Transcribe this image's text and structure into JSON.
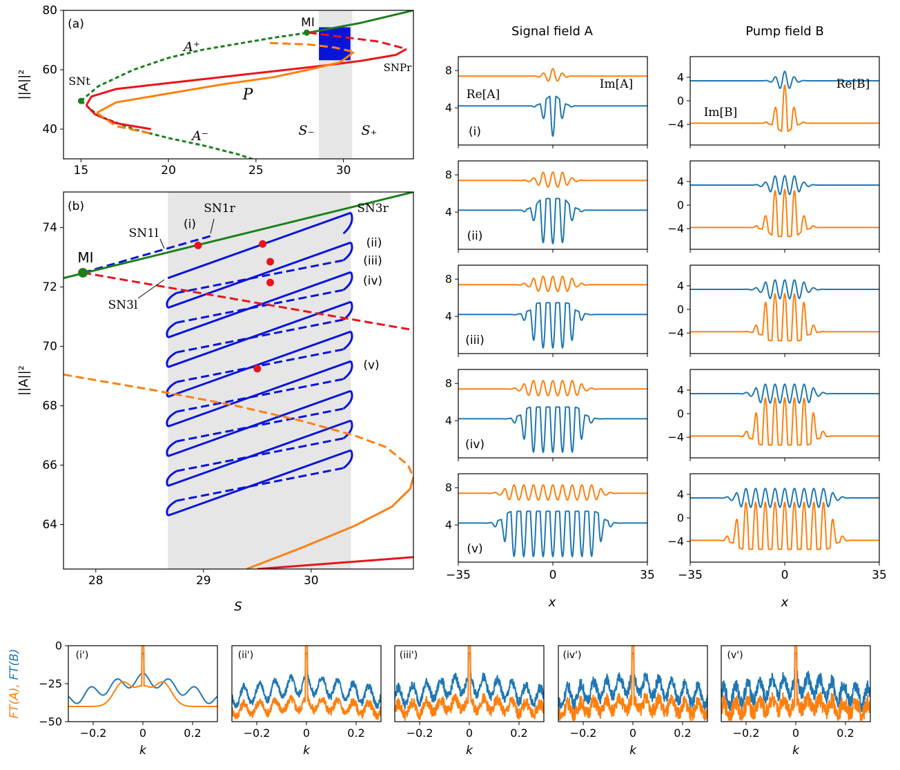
{
  "colors": {
    "blue": "#1f77b4",
    "orange": "#ff7f0e",
    "green": "#1a7f1a",
    "red": "#e8141c",
    "darkblue": "#0a14d8",
    "gray": "#e6e6e6",
    "dot": "#e8141c"
  },
  "chart_data": [
    {
      "id": "a",
      "type": "line",
      "panel_label": "(a)",
      "xlim": [
        14,
        34
      ],
      "ylim": [
        30,
        80
      ],
      "xticks": [
        15,
        20,
        25,
        30
      ],
      "yticks": [
        40,
        60,
        80
      ],
      "ylabel": "||A||²",
      "shaded_x": [
        28.6,
        30.5
      ],
      "annotations": {
        "mi": "MI",
        "a_plus": "A⁺",
        "a_minus": "A⁻",
        "p": "P",
        "snt": "SNt",
        "snp": "SNPr",
        "s_minus": "S₋",
        "s_plus": "S₊"
      },
      "curves": [
        {
          "id": "green-upper",
          "style": "solid",
          "color": "green",
          "x": [
            28,
            31,
            34
          ],
          "y": [
            72.5,
            75.8,
            80
          ]
        },
        {
          "id": "green-dashed",
          "style": "dashed",
          "color": "green",
          "x": [
            15,
            16,
            18,
            20,
            22,
            24,
            26,
            28
          ],
          "y": [
            49.5,
            54.5,
            60,
            64,
            66.8,
            68.8,
            70.8,
            72.5
          ]
        },
        {
          "id": "green-lower",
          "style": "dashed",
          "color": "green",
          "x": [
            15,
            16,
            18,
            20,
            22,
            24,
            25
          ],
          "y": [
            49.5,
            44.5,
            40,
            37,
            34.5,
            31.5,
            29.5
          ]
        },
        {
          "id": "red-p",
          "style": "solid",
          "color": "red",
          "x": [
            15.3,
            15.6,
            17,
            20,
            23,
            26,
            29,
            31,
            33,
            33.6
          ],
          "y": [
            48,
            51,
            53.5,
            55.5,
            57.5,
            59.5,
            61.5,
            63,
            65,
            67
          ]
        },
        {
          "id": "red-lower",
          "style": "solid",
          "color": "red",
          "x": [
            15.3,
            15.8,
            17,
            19
          ],
          "y": [
            48,
            45,
            42,
            40
          ]
        },
        {
          "id": "red-upper-dashed",
          "style": "dashed",
          "color": "red",
          "x": [
            28,
            30,
            32,
            33.6
          ],
          "y": [
            72.5,
            71,
            69.5,
            67
          ]
        },
        {
          "id": "orange-p",
          "style": "solid",
          "color": "orange",
          "x": [
            15.9,
            17,
            20,
            23,
            26,
            28,
            29.8,
            30.6
          ],
          "y": [
            45.5,
            49,
            52,
            55,
            57.5,
            60,
            62.5,
            66
          ]
        },
        {
          "id": "orange-upper-dashed",
          "style": "dashed",
          "color": "orange",
          "x": [
            25.8,
            28,
            29.5,
            30.6
          ],
          "y": [
            69,
            68.5,
            67.5,
            66
          ]
        },
        {
          "id": "orange-lower",
          "style": "dashed",
          "color": "orange",
          "x": [
            15.9,
            17,
            19
          ],
          "y": [
            45.5,
            41,
            38.5
          ]
        }
      ],
      "points": [
        {
          "x": 15,
          "y": 49.5,
          "color": "green"
        },
        {
          "x": 27.9,
          "y": 72.5,
          "color": "green"
        }
      ],
      "blue_block": {
        "x": [
          28.6,
          30.4
        ],
        "y": [
          63,
          74.5
        ]
      }
    },
    {
      "id": "b",
      "type": "line",
      "panel_label": "(b)",
      "xlim": [
        27.7,
        30.95
      ],
      "ylim": [
        62.5,
        75.2
      ],
      "xticks": [
        28,
        29,
        30
      ],
      "yticks": [
        64,
        66,
        68,
        70,
        72,
        74
      ],
      "xlabel": "S",
      "ylabel": "||A||²",
      "shaded_x": [
        28.67,
        30.37
      ],
      "labels": {
        "mi": "MI",
        "sn1l": "SN1l",
        "sn1r": "SN1r",
        "sn3r": "SN3r",
        "sn3l": "SN3l",
        "i": "(i)",
        "ii": "(ii)",
        "iii": "(iii)",
        "iv": "(iv)",
        "v": "(v)"
      },
      "green_line": {
        "x": [
          27.7,
          30.95
        ],
        "y": [
          72.3,
          75.2
        ]
      },
      "red_dashed": {
        "x": [
          27.88,
          30.95
        ],
        "y": [
          72.48,
          70.55
        ]
      },
      "orange_dashed": {
        "x": [
          27.7,
          28.5,
          29.3,
          29.9,
          30.4,
          30.7,
          30.9,
          30.95
        ],
        "y": [
          69.05,
          68.55,
          68.0,
          67.5,
          67.0,
          66.6,
          66.0,
          65.6
        ]
      },
      "orange_solid": {
        "x": [
          29.4,
          29.9,
          30.4,
          30.75,
          30.92,
          30.95
        ],
        "y": [
          62.5,
          63.2,
          63.95,
          64.6,
          65.2,
          65.6
        ]
      },
      "red_bottom": {
        "x": [
          29.5,
          30.95
        ],
        "y": [
          62.5,
          62.9
        ]
      },
      "snake_solid_left_y": [
        72.3,
        71.3,
        70.3,
        69.3,
        68.3,
        67.3,
        66.3,
        65.3,
        64.3
      ],
      "snake_solid_right_y": [
        74.5,
        73.5,
        72.5,
        71.5,
        70.5,
        69.5,
        68.5,
        67.5,
        66.5
      ],
      "snake_dashed_left_y": [
        73.3,
        71.8,
        70.8,
        69.8,
        68.8,
        67.8,
        66.8,
        65.8,
        64.8
      ],
      "snake_dashed_right_y": [
        73.8,
        72.9,
        71.9,
        70.9,
        69.9,
        68.9,
        67.9,
        66.9,
        65.9
      ],
      "red_points": [
        {
          "x": 28.95,
          "y": 73.4
        },
        {
          "x": 29.55,
          "y": 73.45
        },
        {
          "x": 29.62,
          "y": 72.85
        },
        {
          "x": 29.62,
          "y": 72.15
        },
        {
          "x": 29.5,
          "y": 69.25
        }
      ],
      "mi_point": {
        "x": 27.88,
        "y": 72.48
      }
    }
  ],
  "grid_headers": {
    "signal": "Signal field A",
    "pump": "Pump field B"
  },
  "profiles": {
    "xlim": [
      -35,
      35
    ],
    "xticks": [
      -35,
      0,
      35
    ],
    "xlabel": "x",
    "signal_yticks": [
      4,
      8
    ],
    "pump_yticks": [
      -4,
      0,
      4
    ],
    "signal_ylim": [
      0,
      9.5
    ],
    "pump_ylim": [
      -7.5,
      7.5
    ],
    "row_labels": [
      "(i)",
      "(ii)",
      "(iii)",
      "(iv)",
      "(v)"
    ],
    "widths": [
      4,
      6,
      8,
      11,
      18
    ],
    "signal_legend": {
      "re": "Re[A]",
      "im": "Im[A]"
    },
    "pump_legend": {
      "re": "Re[B]",
      "im": "Im[B]"
    }
  },
  "spectra": {
    "xlim": [
      -0.3,
      0.3
    ],
    "ylim": [
      -50,
      0
    ],
    "xticks": [
      -0.2,
      0.0,
      0.2
    ],
    "yticks": [
      0,
      -25,
      -50
    ],
    "xlabel": "k",
    "ylabel_a": "FT(A),",
    "ylabel_b": "FT(B)",
    "labels": [
      "(i')",
      "(ii')",
      "(iii')",
      "(iv')",
      "(v')"
    ]
  }
}
